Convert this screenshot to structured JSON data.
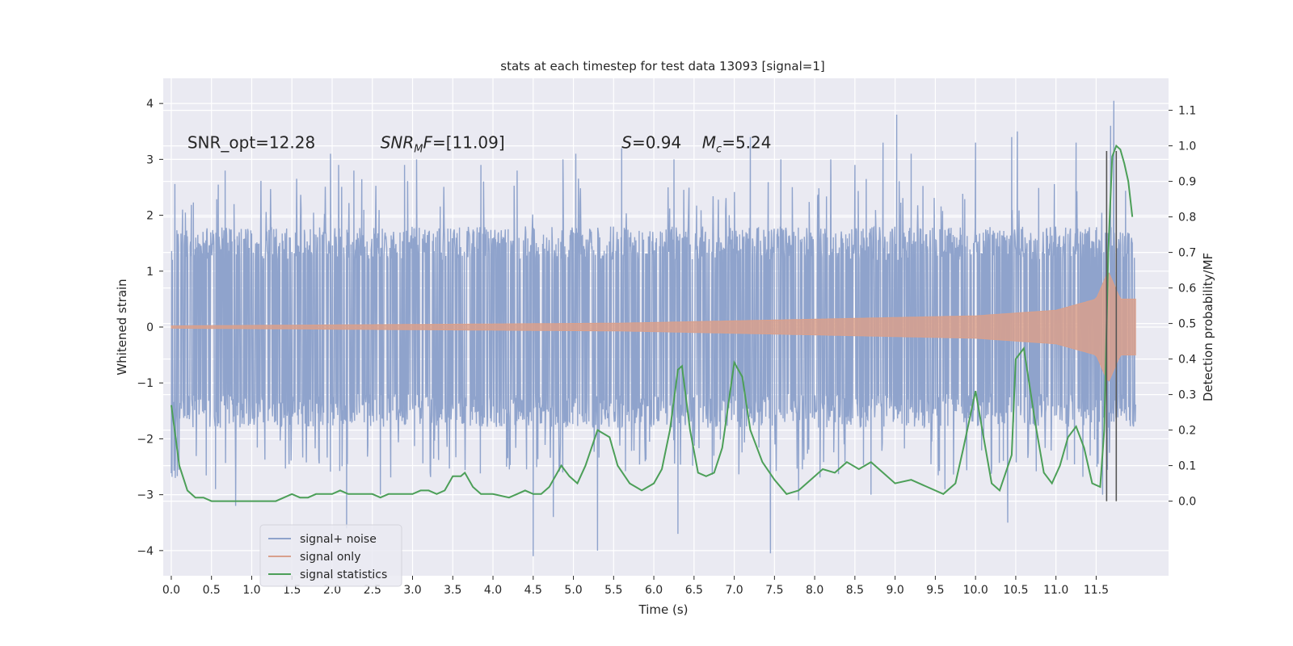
{
  "chart_data": {
    "type": "line",
    "title": "stats at each timestep for test data 13093 [signal=1]",
    "xlabel": "Time (s)",
    "ylabel": "Whitened strain",
    "y2label": "Detection probability/MF",
    "xlim": [
      -0.1,
      12.4
    ],
    "ylim": [
      -4.45,
      4.45
    ],
    "y2lim": [
      -0.21,
      1.19
    ],
    "x_ticks": [
      0.0,
      0.5,
      1.0,
      1.5,
      2.0,
      2.5,
      3.0,
      3.5,
      4.0,
      4.5,
      5.0,
      5.5,
      6.0,
      6.5,
      7.0,
      7.5,
      8.0,
      8.5,
      9.0,
      9.5,
      10.0,
      10.5,
      11.0,
      11.5
    ],
    "x_tick_labels": [
      "0.0",
      "0.5",
      "1.0",
      "1.5",
      "2.0",
      "2.5",
      "3.0",
      "3.5",
      "4.0",
      "4.5",
      "5.0",
      "5.5",
      "6.0",
      "6.5",
      "7.0",
      "7.5",
      "8.0",
      "8.5",
      "9.0",
      "9.5",
      "10.0",
      "10.5",
      "11.0",
      "11.5"
    ],
    "y_ticks": [
      4,
      3,
      2,
      1,
      0,
      -1,
      -2,
      -3,
      -4
    ],
    "y_tick_labels": [
      "4",
      "3",
      "2",
      "1",
      "0",
      "−1",
      "−2",
      "−3",
      "−4"
    ],
    "y2_ticks": [
      1.1,
      1.0,
      0.9,
      0.8,
      0.7,
      0.6,
      0.5,
      0.4,
      0.3,
      0.2,
      0.1,
      0.0
    ],
    "y2_tick_labels": [
      "1.1",
      "1.0",
      "0.9",
      "0.8",
      "0.7",
      "0.6",
      "0.5",
      "0.4",
      "0.3",
      "0.2",
      "0.1",
      "0.0"
    ],
    "grid": true,
    "legend_position": "lower-left",
    "annotations": [
      {
        "text": "SNR_opt=12.28",
        "x": 0.2,
        "y": 3.2
      },
      {
        "text_main": "SNR",
        "text_sub": "M",
        "text_rest": "F=[11.09]",
        "x": 2.6,
        "y": 3.2
      },
      {
        "text_main": "S",
        "text_rest": "=0.94",
        "x": 5.6,
        "y": 3.2
      },
      {
        "text_main": "M",
        "text_sub": "c",
        "text_rest": "=5.24",
        "x": 6.6,
        "y": 3.2
      }
    ],
    "vertical_lines": [
      11.63,
      11.75
    ],
    "series": [
      {
        "name": "signal+ noise",
        "color": "#8fa3cc",
        "axis": "left",
        "x_start": 0.0,
        "x_end": 11.99,
        "typical_envelope": [
          -1.8,
          1.9
        ],
        "peaks_high": [
          [
            0.67,
            2.8
          ],
          [
            0.78,
            2.2
          ],
          [
            1.98,
            3.1
          ],
          [
            2.08,
            2.9
          ],
          [
            2.27,
            2.8
          ],
          [
            2.9,
            2.9
          ],
          [
            3.05,
            3.0
          ],
          [
            3.85,
            2.9
          ],
          [
            4.3,
            2.8
          ],
          [
            4.87,
            3.0
          ],
          [
            5.03,
            3.1
          ],
          [
            5.6,
            3.2
          ],
          [
            6.25,
            3.0
          ],
          [
            7.2,
            3.4
          ],
          [
            7.58,
            3.0
          ],
          [
            8.2,
            3.0
          ],
          [
            8.5,
            2.9
          ],
          [
            8.85,
            3.3
          ],
          [
            9.02,
            3.8
          ],
          [
            9.2,
            3.1
          ],
          [
            10.0,
            3.3
          ],
          [
            10.45,
            3.4
          ],
          [
            10.52,
            3.5
          ],
          [
            11.25,
            3.3
          ],
          [
            11.72,
            4.05
          ],
          [
            11.68,
            3.6
          ]
        ],
        "peaks_low": [
          [
            0.05,
            -2.7
          ],
          [
            0.55,
            -2.9
          ],
          [
            0.8,
            -3.2
          ],
          [
            2.18,
            -3.6
          ],
          [
            2.6,
            -3.0
          ],
          [
            4.5,
            -4.1
          ],
          [
            4.75,
            -3.4
          ],
          [
            5.3,
            -4.0
          ],
          [
            6.3,
            -3.7
          ],
          [
            7.45,
            -4.05
          ],
          [
            7.8,
            -3.1
          ],
          [
            8.7,
            -3.0
          ],
          [
            9.62,
            -2.9
          ],
          [
            10.4,
            -3.5
          ],
          [
            11.58,
            -3.0
          ]
        ]
      },
      {
        "name": "signal only",
        "color": "#d9a08c",
        "axis": "left",
        "x_start": 0.0,
        "x_end": 11.99,
        "t_coalescence": 11.85,
        "amplitude_at": [
          [
            0.0,
            0.02
          ],
          [
            5.6,
            0.07
          ],
          [
            8.0,
            0.14
          ],
          [
            10.0,
            0.2
          ],
          [
            11.0,
            0.3
          ],
          [
            11.5,
            0.5
          ],
          [
            11.65,
            1.0
          ],
          [
            11.8,
            0.5
          ]
        ]
      },
      {
        "name": "signal statistics",
        "color": "#4c9f58",
        "axis": "right",
        "x": [
          0.0,
          0.1,
          0.2,
          0.3,
          0.4,
          0.5,
          0.6,
          0.7,
          0.8,
          0.9,
          1.0,
          1.1,
          1.2,
          1.3,
          1.4,
          1.5,
          1.6,
          1.7,
          1.8,
          1.9,
          2.0,
          2.1,
          2.2,
          2.3,
          2.4,
          2.5,
          2.6,
          2.7,
          2.8,
          2.9,
          3.0,
          3.1,
          3.2,
          3.3,
          3.4,
          3.5,
          3.6,
          3.65,
          3.75,
          3.85,
          4.0,
          4.2,
          4.3,
          4.4,
          4.5,
          4.6,
          4.7,
          4.85,
          4.95,
          5.05,
          5.15,
          5.3,
          5.45,
          5.55,
          5.7,
          5.85,
          6.0,
          6.1,
          6.2,
          6.3,
          6.35,
          6.45,
          6.55,
          6.65,
          6.75,
          6.85,
          7.0,
          7.1,
          7.2,
          7.35,
          7.5,
          7.65,
          7.8,
          7.95,
          8.1,
          8.25,
          8.4,
          8.55,
          8.7,
          8.85,
          9.0,
          9.2,
          9.4,
          9.6,
          9.75,
          9.85,
          10.0,
          10.1,
          10.2,
          10.3,
          10.45,
          10.5,
          10.6,
          10.75,
          10.85,
          10.95,
          11.05,
          11.15,
          11.25,
          11.35,
          11.45,
          11.55,
          11.6,
          11.65,
          11.7,
          11.75,
          11.8,
          11.85,
          11.9,
          11.95
        ],
        "values": [
          0.27,
          0.1,
          0.03,
          0.01,
          0.01,
          0.0,
          0.0,
          0.0,
          0.0,
          0.0,
          0.0,
          0.0,
          0.0,
          0.0,
          0.01,
          0.02,
          0.01,
          0.01,
          0.02,
          0.02,
          0.02,
          0.03,
          0.02,
          0.02,
          0.02,
          0.02,
          0.01,
          0.02,
          0.02,
          0.02,
          0.02,
          0.03,
          0.03,
          0.02,
          0.03,
          0.07,
          0.07,
          0.08,
          0.04,
          0.02,
          0.02,
          0.01,
          0.02,
          0.03,
          0.02,
          0.02,
          0.04,
          0.1,
          0.07,
          0.05,
          0.1,
          0.2,
          0.18,
          0.1,
          0.05,
          0.03,
          0.05,
          0.09,
          0.2,
          0.37,
          0.38,
          0.2,
          0.08,
          0.07,
          0.08,
          0.15,
          0.39,
          0.35,
          0.2,
          0.11,
          0.06,
          0.02,
          0.03,
          0.06,
          0.09,
          0.08,
          0.11,
          0.09,
          0.11,
          0.08,
          0.05,
          0.06,
          0.04,
          0.02,
          0.05,
          0.15,
          0.31,
          0.18,
          0.05,
          0.03,
          0.13,
          0.4,
          0.43,
          0.21,
          0.08,
          0.05,
          0.1,
          0.18,
          0.21,
          0.15,
          0.05,
          0.04,
          0.2,
          0.7,
          0.97,
          1.0,
          0.99,
          0.95,
          0.9,
          0.8
        ]
      }
    ]
  }
}
